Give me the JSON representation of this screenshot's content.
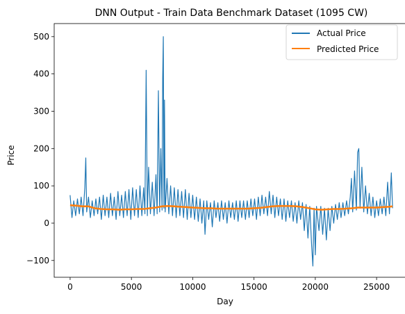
{
  "chart_data": {
    "type": "line",
    "title": "DNN Output - Train Data Benchmark Dataset (1095 CW)",
    "xlabel": "Day",
    "ylabel": "Price",
    "xlim": [
      -1300,
      27600
    ],
    "ylim": [
      -145,
      535
    ],
    "xticks": [
      0,
      5000,
      10000,
      15000,
      20000,
      25000
    ],
    "yticks": [
      -100,
      0,
      100,
      200,
      300,
      400,
      500
    ],
    "grid": false,
    "legend_position": "top-right",
    "series": [
      {
        "name": "Actual Price",
        "color": "#1f77b4",
        "points": [
          [
            0,
            75
          ],
          [
            150,
            15
          ],
          [
            300,
            60
          ],
          [
            450,
            20
          ],
          [
            600,
            65
          ],
          [
            750,
            25
          ],
          [
            900,
            70
          ],
          [
            1050,
            20
          ],
          [
            1200,
            95
          ],
          [
            1280,
            175
          ],
          [
            1350,
            30
          ],
          [
            1500,
            70
          ],
          [
            1650,
            15
          ],
          [
            1800,
            60
          ],
          [
            1950,
            20
          ],
          [
            2100,
            65
          ],
          [
            2250,
            25
          ],
          [
            2400,
            70
          ],
          [
            2550,
            10
          ],
          [
            2700,
            75
          ],
          [
            2850,
            20
          ],
          [
            3000,
            70
          ],
          [
            3150,
            15
          ],
          [
            3300,
            80
          ],
          [
            3450,
            20
          ],
          [
            3600,
            70
          ],
          [
            3750,
            10
          ],
          [
            3900,
            85
          ],
          [
            4050,
            20
          ],
          [
            4200,
            75
          ],
          [
            4350,
            15
          ],
          [
            4500,
            85
          ],
          [
            4650,
            20
          ],
          [
            4800,
            90
          ],
          [
            4950,
            10
          ],
          [
            5100,
            95
          ],
          [
            5250,
            20
          ],
          [
            5400,
            90
          ],
          [
            5550,
            15
          ],
          [
            5700,
            100
          ],
          [
            5850,
            20
          ],
          [
            6000,
            95
          ],
          [
            6100,
            25
          ],
          [
            6200,
            410
          ],
          [
            6300,
            20
          ],
          [
            6400,
            150
          ],
          [
            6550,
            25
          ],
          [
            6700,
            110
          ],
          [
            6850,
            20
          ],
          [
            7000,
            130
          ],
          [
            7100,
            25
          ],
          [
            7200,
            355
          ],
          [
            7300,
            30
          ],
          [
            7400,
            200
          ],
          [
            7500,
            35
          ],
          [
            7550,
            390
          ],
          [
            7600,
            500
          ],
          [
            7650,
            40
          ],
          [
            7700,
            330
          ],
          [
            7750,
            30
          ],
          [
            7900,
            120
          ],
          [
            8050,
            25
          ],
          [
            8200,
            100
          ],
          [
            8350,
            20
          ],
          [
            8500,
            95
          ],
          [
            8650,
            15
          ],
          [
            8800,
            90
          ],
          [
            8950,
            20
          ],
          [
            9100,
            85
          ],
          [
            9250,
            15
          ],
          [
            9400,
            90
          ],
          [
            9550,
            10
          ],
          [
            9700,
            80
          ],
          [
            9850,
            15
          ],
          [
            10000,
            75
          ],
          [
            10150,
            10
          ],
          [
            10300,
            70
          ],
          [
            10450,
            5
          ],
          [
            10600,
            65
          ],
          [
            10750,
            0
          ],
          [
            10900,
            60
          ],
          [
            11000,
            -30
          ],
          [
            11150,
            60
          ],
          [
            11300,
            10
          ],
          [
            11450,
            55
          ],
          [
            11600,
            -10
          ],
          [
            11750,
            60
          ],
          [
            11900,
            15
          ],
          [
            12050,
            55
          ],
          [
            12200,
            5
          ],
          [
            12350,
            60
          ],
          [
            12500,
            10
          ],
          [
            12650,
            55
          ],
          [
            12800,
            0
          ],
          [
            12950,
            60
          ],
          [
            13100,
            15
          ],
          [
            13250,
            55
          ],
          [
            13400,
            10
          ],
          [
            13550,
            60
          ],
          [
            13700,
            5
          ],
          [
            13850,
            60
          ],
          [
            14000,
            15
          ],
          [
            14150,
            60
          ],
          [
            14300,
            10
          ],
          [
            14450,
            60
          ],
          [
            14600,
            15
          ],
          [
            14750,
            65
          ],
          [
            14900,
            20
          ],
          [
            15050,
            65
          ],
          [
            15200,
            10
          ],
          [
            15350,
            70
          ],
          [
            15500,
            20
          ],
          [
            15650,
            75
          ],
          [
            15800,
            25
          ],
          [
            15950,
            70
          ],
          [
            16100,
            20
          ],
          [
            16250,
            85
          ],
          [
            16400,
            25
          ],
          [
            16550,
            75
          ],
          [
            16700,
            15
          ],
          [
            16850,
            70
          ],
          [
            17000,
            20
          ],
          [
            17150,
            65
          ],
          [
            17300,
            10
          ],
          [
            17450,
            65
          ],
          [
            17600,
            5
          ],
          [
            17750,
            60
          ],
          [
            17900,
            15
          ],
          [
            18050,
            60
          ],
          [
            18200,
            5
          ],
          [
            18350,
            55
          ],
          [
            18500,
            0
          ],
          [
            18650,
            60
          ],
          [
            18800,
            10
          ],
          [
            18950,
            55
          ],
          [
            19100,
            -20
          ],
          [
            19250,
            50
          ],
          [
            19400,
            -40
          ],
          [
            19550,
            45
          ],
          [
            19700,
            -60
          ],
          [
            19800,
            -115
          ],
          [
            19900,
            40
          ],
          [
            20000,
            -85
          ],
          [
            20100,
            45
          ],
          [
            20300,
            -20
          ],
          [
            20450,
            45
          ],
          [
            20600,
            -30
          ],
          [
            20750,
            40
          ],
          [
            20900,
            -45
          ],
          [
            21050,
            40
          ],
          [
            21200,
            -20
          ],
          [
            21350,
            45
          ],
          [
            21500,
            0
          ],
          [
            21650,
            50
          ],
          [
            21800,
            10
          ],
          [
            21950,
            55
          ],
          [
            22100,
            15
          ],
          [
            22250,
            55
          ],
          [
            22400,
            20
          ],
          [
            22550,
            60
          ],
          [
            22700,
            25
          ],
          [
            22850,
            70
          ],
          [
            22950,
            120
          ],
          [
            23050,
            30
          ],
          [
            23200,
            140
          ],
          [
            23350,
            35
          ],
          [
            23450,
            190
          ],
          [
            23550,
            200
          ],
          [
            23650,
            40
          ],
          [
            23800,
            150
          ],
          [
            23950,
            30
          ],
          [
            24100,
            100
          ],
          [
            24250,
            25
          ],
          [
            24400,
            80
          ],
          [
            24550,
            20
          ],
          [
            24700,
            70
          ],
          [
            24850,
            15
          ],
          [
            25000,
            60
          ],
          [
            25150,
            20
          ],
          [
            25300,
            65
          ],
          [
            25450,
            25
          ],
          [
            25600,
            70
          ],
          [
            25750,
            20
          ],
          [
            25900,
            110
          ],
          [
            26050,
            25
          ],
          [
            26200,
            135
          ],
          [
            26300,
            40
          ]
        ]
      },
      {
        "name": "Predicted Price",
        "color": "#ff7f0e",
        "points": [
          [
            0,
            48
          ],
          [
            500,
            47
          ],
          [
            1000,
            45
          ],
          [
            1500,
            45
          ],
          [
            2000,
            40
          ],
          [
            2500,
            38
          ],
          [
            3000,
            37
          ],
          [
            3500,
            37
          ],
          [
            4000,
            36
          ],
          [
            4500,
            37
          ],
          [
            5000,
            37
          ],
          [
            5500,
            38
          ],
          [
            6000,
            38
          ],
          [
            6500,
            40
          ],
          [
            7000,
            42
          ],
          [
            7500,
            45
          ],
          [
            8000,
            46
          ],
          [
            8500,
            45
          ],
          [
            9000,
            44
          ],
          [
            9500,
            43
          ],
          [
            10000,
            42
          ],
          [
            10500,
            41
          ],
          [
            11000,
            40
          ],
          [
            11500,
            40
          ],
          [
            12000,
            39
          ],
          [
            12500,
            39
          ],
          [
            13000,
            39
          ],
          [
            13500,
            39
          ],
          [
            14000,
            39
          ],
          [
            14500,
            39
          ],
          [
            15000,
            40
          ],
          [
            15500,
            41
          ],
          [
            16000,
            43
          ],
          [
            16500,
            45
          ],
          [
            17000,
            46
          ],
          [
            17500,
            46
          ],
          [
            18000,
            46
          ],
          [
            18500,
            45
          ],
          [
            19000,
            43
          ],
          [
            19500,
            40
          ],
          [
            20000,
            37
          ],
          [
            20500,
            36
          ],
          [
            21000,
            37
          ],
          [
            21500,
            38
          ],
          [
            22000,
            38
          ],
          [
            22500,
            39
          ],
          [
            23000,
            40
          ],
          [
            23500,
            42
          ],
          [
            24000,
            42
          ],
          [
            24500,
            42
          ],
          [
            25000,
            42
          ],
          [
            25500,
            43
          ],
          [
            26000,
            44
          ],
          [
            26300,
            45
          ]
        ]
      }
    ]
  }
}
